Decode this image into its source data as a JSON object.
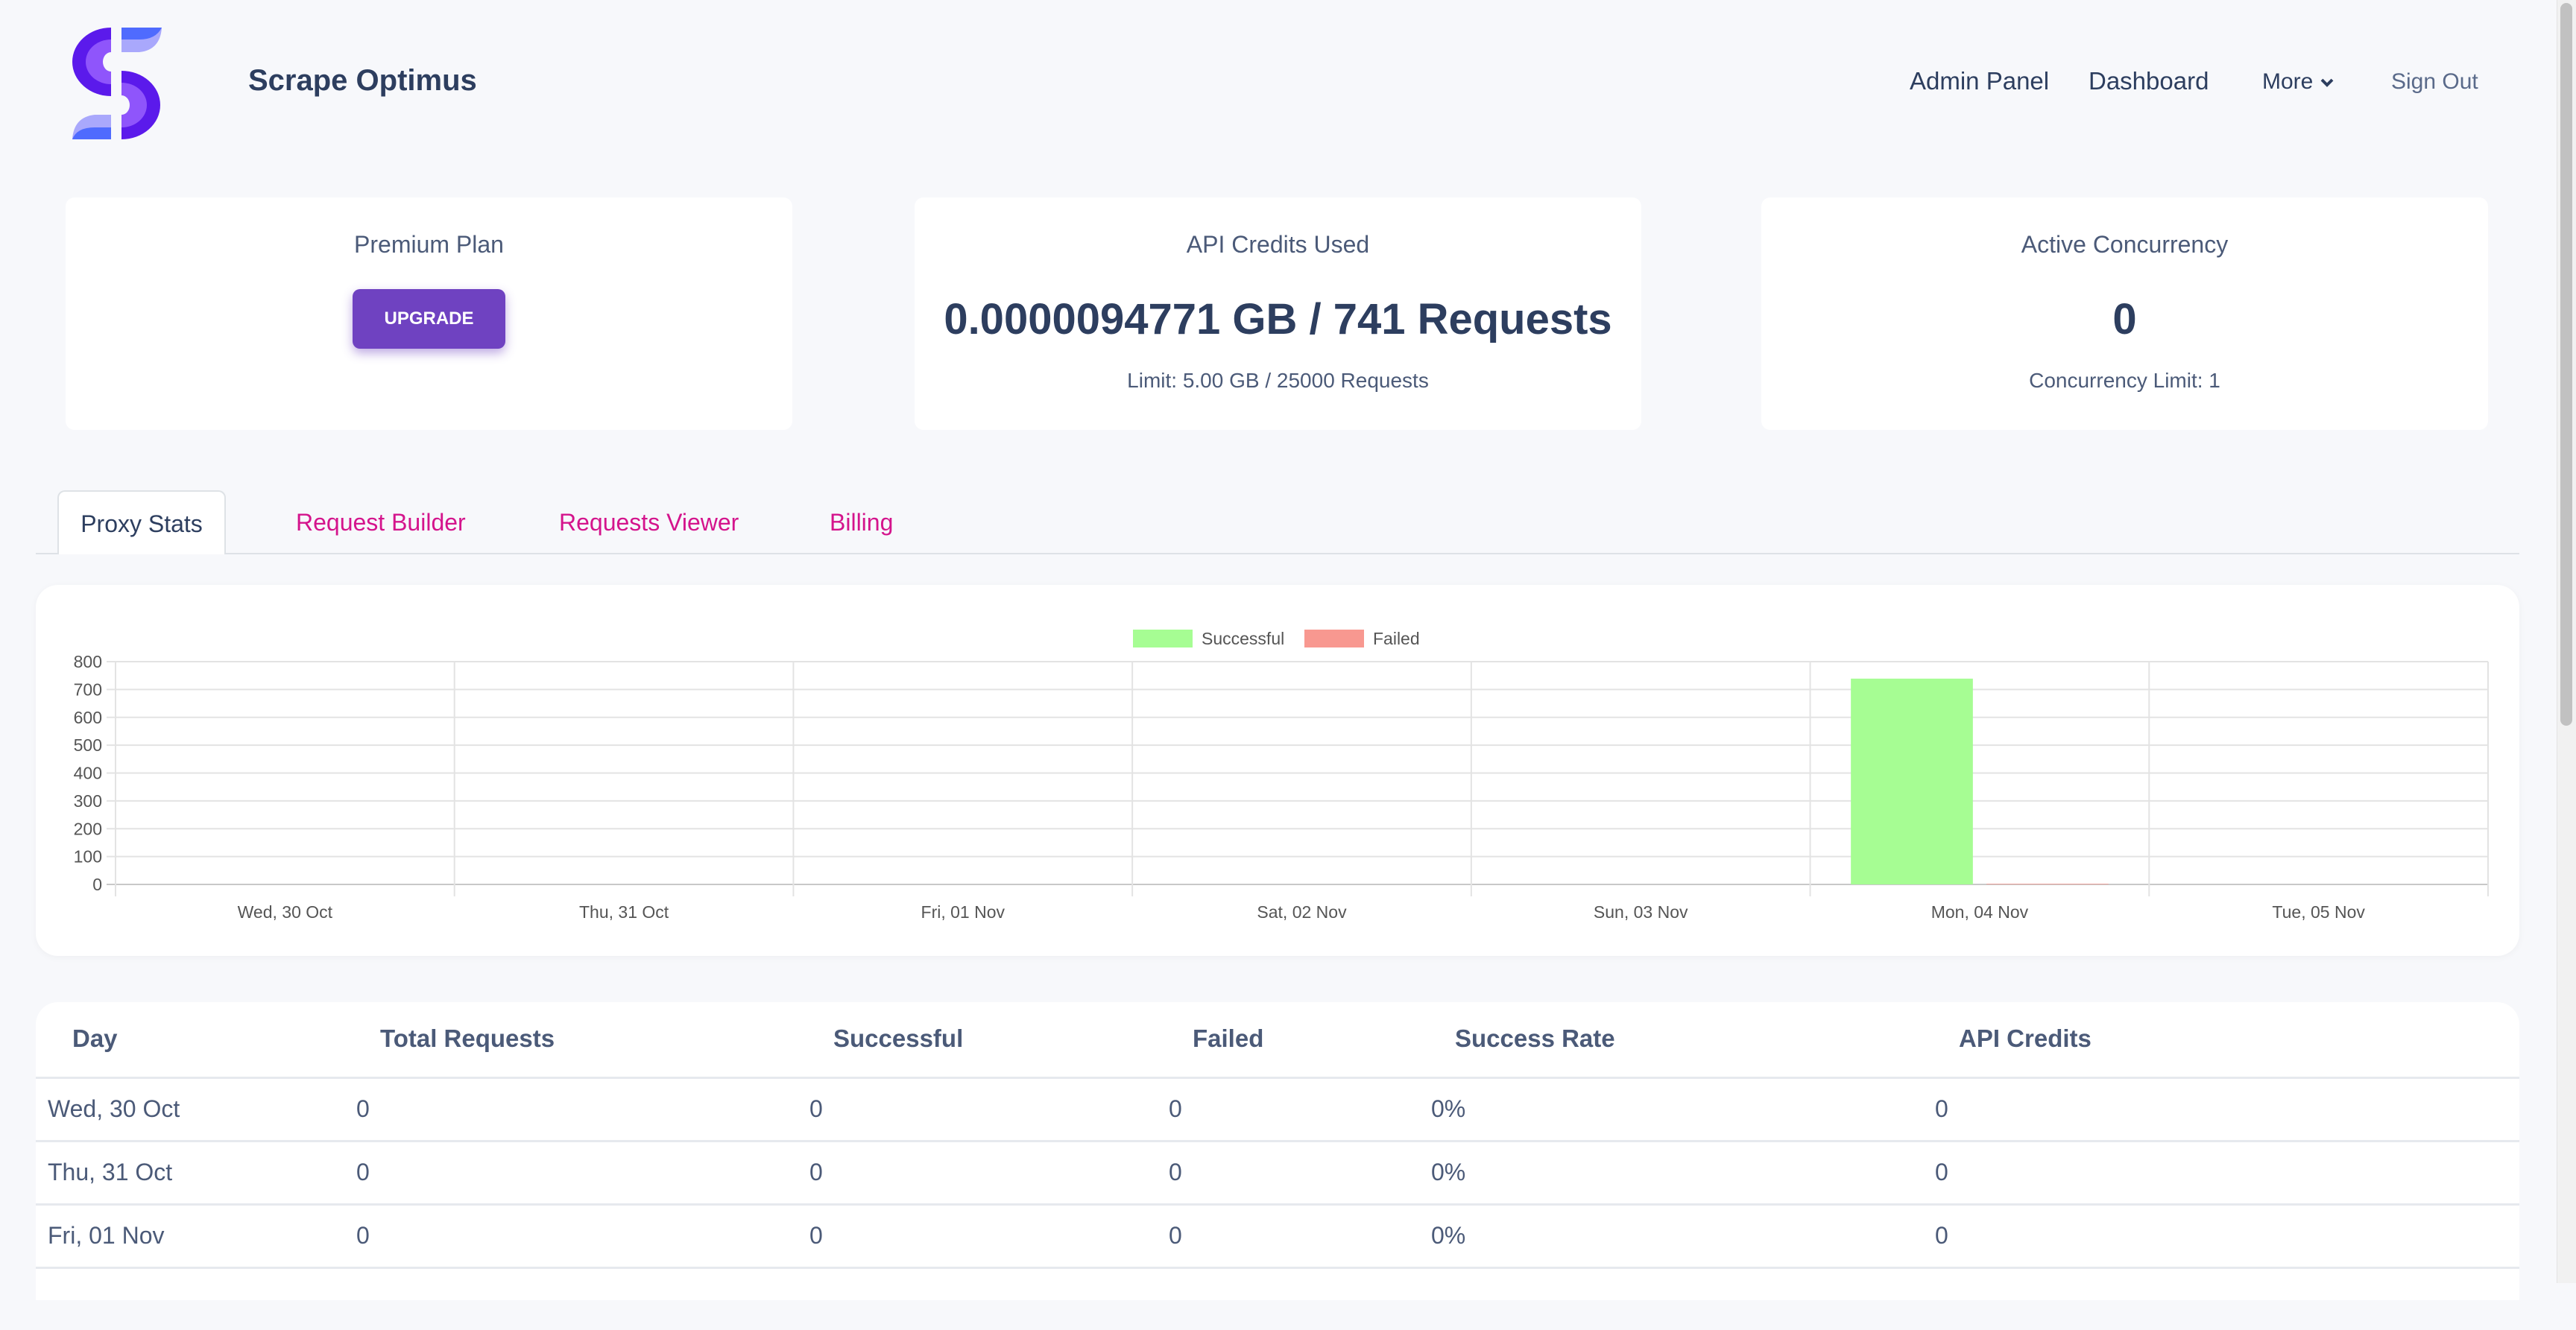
{
  "header": {
    "brand": "Scrape Optimus",
    "nav": [
      "Admin Panel",
      "Dashboard",
      "More",
      "Sign Out"
    ]
  },
  "cards": [
    {
      "title": "Premium Plan",
      "button": "UPGRADE"
    },
    {
      "title": "API Credits Used",
      "value": "0.0000094771 GB / 741 Requests",
      "sub": "Limit: 5.00 GB / 25000 Requests"
    },
    {
      "title": "Active Concurrency",
      "value": "0",
      "sub": "Concurrency Limit: 1"
    }
  ],
  "tabs": [
    "Proxy Stats",
    "Request Builder",
    "Requests Viewer",
    "Billing"
  ],
  "colors": {
    "accent": "#6f42c1",
    "tab_link": "#d4148c",
    "successful": "#a6fd93",
    "failed": "#f89890"
  },
  "chart_data": {
    "type": "bar",
    "categories": [
      "Wed, 30 Oct",
      "Thu, 31 Oct",
      "Fri, 01 Nov",
      "Sat, 02 Nov",
      "Sun, 03 Nov",
      "Mon, 04 Nov",
      "Tue, 05 Nov"
    ],
    "series": [
      {
        "name": "Successful",
        "values": [
          0,
          0,
          0,
          0,
          0,
          739,
          0
        ],
        "color": "#a6fd93"
      },
      {
        "name": "Failed",
        "values": [
          0,
          0,
          0,
          0,
          0,
          2,
          0
        ],
        "color": "#f89890"
      }
    ],
    "ylim": [
      0,
      800
    ],
    "yticks": [
      0,
      100,
      200,
      300,
      400,
      500,
      600,
      700,
      800
    ],
    "grid": true,
    "legend": "top"
  },
  "table": {
    "headers": [
      "Day",
      "Total Requests",
      "Successful",
      "Failed",
      "Success Rate",
      "API Credits"
    ],
    "rows": [
      [
        "Wed, 30 Oct",
        "0",
        "0",
        "0",
        "0%",
        "0"
      ],
      [
        "Thu, 31 Oct",
        "0",
        "0",
        "0",
        "0%",
        "0"
      ],
      [
        "Fri, 01 Nov",
        "0",
        "0",
        "0",
        "0%",
        "0"
      ]
    ]
  }
}
